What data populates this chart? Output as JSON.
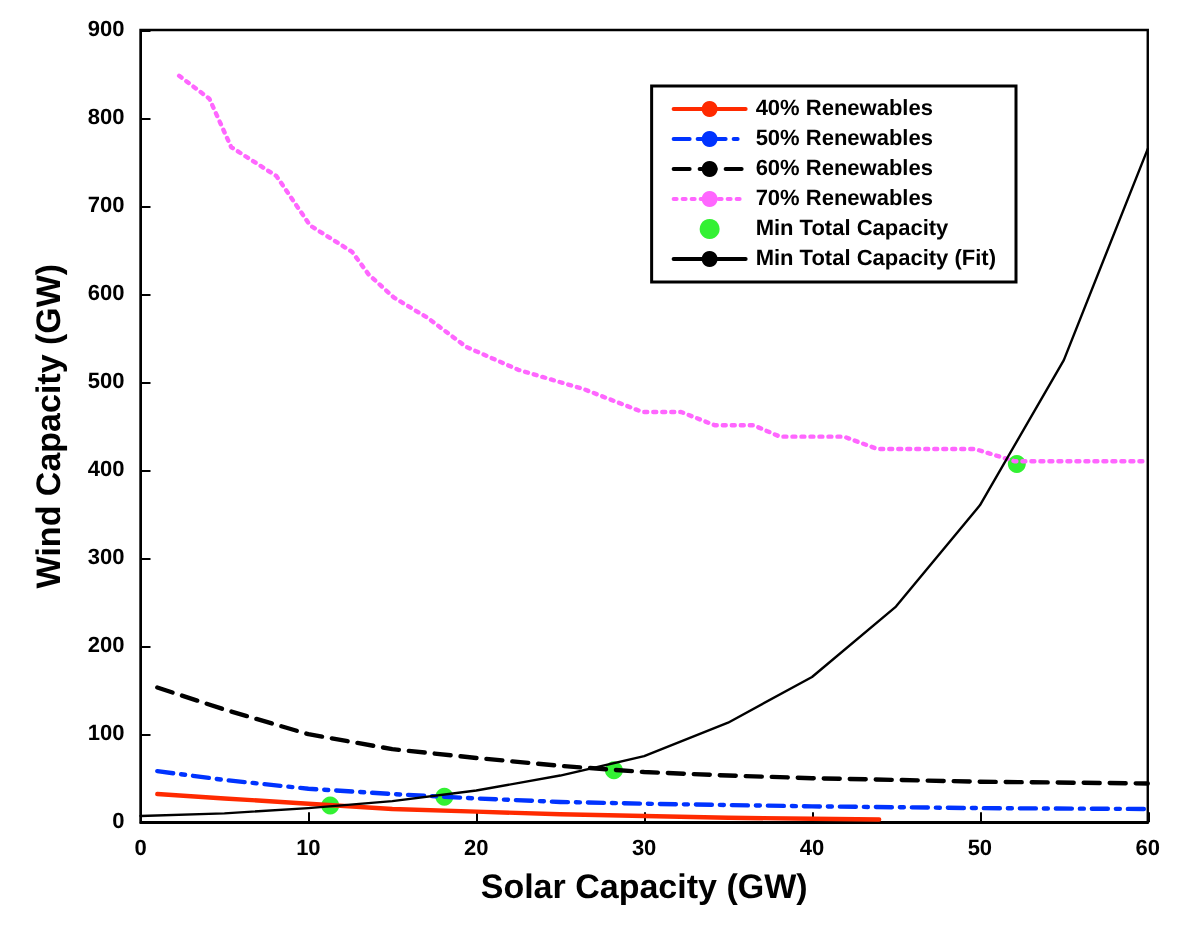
{
  "chart_data": {
    "type": "line",
    "xlabel": "Solar Capacity (GW)",
    "ylabel": "Wind Capacity (GW)",
    "xlim": [
      0,
      60
    ],
    "xticks": [
      0,
      10,
      20,
      30,
      40,
      50,
      60
    ],
    "ylim": [
      0,
      900
    ],
    "yticks": [
      0,
      100,
      200,
      300,
      400,
      500,
      600,
      700,
      800,
      900
    ],
    "grid": false,
    "legend": "top right",
    "series": [
      {
        "name": "40% Renewables",
        "color": "#ff2a00",
        "line_style": "solid",
        "x": [
          1,
          5,
          10,
          15,
          20,
          25,
          30,
          35,
          40,
          44
        ],
        "values": [
          32,
          27,
          21,
          15,
          12,
          9,
          7,
          5,
          4,
          3
        ]
      },
      {
        "name": "50% Renewables",
        "color": "#0033ff",
        "line_style": "dashdot",
        "x": [
          1,
          5,
          10,
          15,
          20,
          25,
          30,
          40,
          50,
          60
        ],
        "values": [
          58,
          48,
          38,
          32,
          27,
          23,
          21,
          18,
          16,
          15
        ]
      },
      {
        "name": "60% Renewables",
        "color": "#000000",
        "line_style": "dashed",
        "x": [
          1,
          5,
          10,
          15,
          20,
          25,
          30,
          35,
          40,
          50,
          60
        ],
        "values": [
          153,
          128,
          100,
          83,
          73,
          64,
          57,
          53,
          50,
          46,
          44
        ]
      },
      {
        "name": "70% Renewables",
        "color": "#ff66ff",
        "line_style": "dotted",
        "x": [
          2.3,
          4.1,
          5.4,
          8.1,
          10.1,
          12.6,
          13.6,
          15.1,
          17.1,
          19.4,
          22.5,
          26.4,
          29.9,
          32.2,
          34.2,
          36.5,
          38.1,
          41.9,
          43.9,
          49.7,
          52.1,
          59.9
        ],
        "values": [
          848,
          822,
          767,
          734,
          678,
          648,
          622,
          596,
          573,
          540,
          514,
          492,
          466,
          466,
          451,
          451,
          438,
          438,
          424,
          424,
          410,
          410
        ]
      },
      {
        "name": "Min Total Capacity",
        "type": "scatter",
        "marker": "circle",
        "color": "#00ee00",
        "x": [
          11.3,
          18.1,
          28.2,
          52.2
        ],
        "values": [
          19,
          29,
          59,
          407
        ]
      },
      {
        "name": "Min Total Capacity (Fit)",
        "color": "#000000",
        "line_style": "solid",
        "x": [
          0,
          5,
          10,
          15,
          20,
          25,
          30,
          35,
          40,
          45,
          50,
          55,
          60
        ],
        "values": [
          7,
          10,
          16,
          24,
          36,
          53,
          75,
          113,
          165,
          245,
          360,
          525,
          765
        ]
      }
    ]
  }
}
